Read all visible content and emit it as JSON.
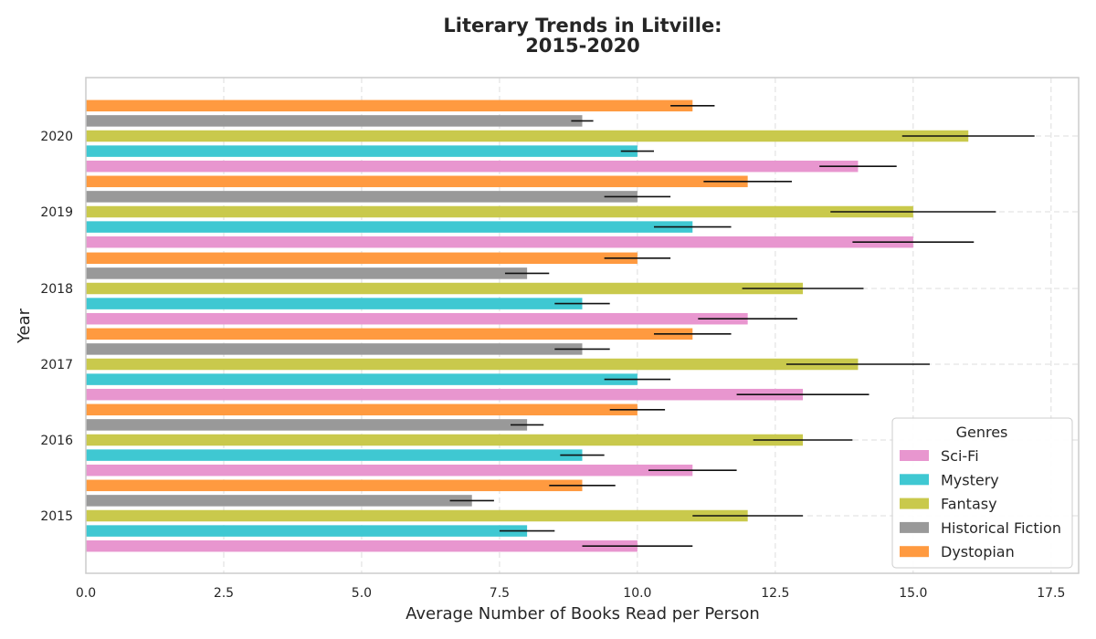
{
  "chart_data": {
    "type": "bar",
    "orientation": "horizontal",
    "title_line1": "Literary Trends in Litville:",
    "title_line2": "2015-2020",
    "xlabel": "Average Number of Books Read per Person",
    "ylabel": "Year",
    "xlim": [
      0,
      18
    ],
    "xticks": [
      "0.0",
      "2.5",
      "5.0",
      "7.5",
      "10.0",
      "12.5",
      "15.0",
      "17.5"
    ],
    "categories": [
      "2015",
      "2016",
      "2017",
      "2018",
      "2019",
      "2020"
    ],
    "grid": true,
    "legend_title": "Genres",
    "legend_position": "lower-right",
    "series": [
      {
        "name": "Sci-Fi",
        "color": "#e896cf",
        "values": [
          10,
          11,
          13,
          12,
          15,
          14
        ],
        "errors": [
          1.0,
          0.8,
          1.2,
          0.9,
          1.1,
          0.7
        ]
      },
      {
        "name": "Mystery",
        "color": "#3fc8d2",
        "values": [
          8,
          9,
          10,
          9,
          11,
          10
        ],
        "errors": [
          0.5,
          0.4,
          0.6,
          0.5,
          0.7,
          0.3
        ]
      },
      {
        "name": "Fantasy",
        "color": "#c9c94c",
        "values": [
          12,
          13,
          14,
          13,
          15,
          16
        ],
        "errors": [
          1.0,
          0.9,
          1.3,
          1.1,
          1.5,
          1.2
        ]
      },
      {
        "name": "Historical Fiction",
        "color": "#999999",
        "values": [
          7,
          8,
          9,
          8,
          10,
          9
        ],
        "errors": [
          0.4,
          0.3,
          0.5,
          0.4,
          0.6,
          0.2
        ]
      },
      {
        "name": "Dystopian",
        "color": "#ff9a40",
        "values": [
          9,
          10,
          11,
          10,
          12,
          11
        ],
        "errors": [
          0.6,
          0.5,
          0.7,
          0.6,
          0.8,
          0.4
        ]
      }
    ]
  }
}
